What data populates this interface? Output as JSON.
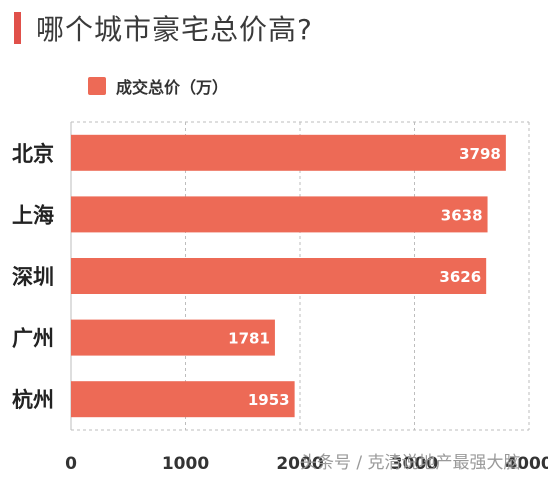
{
  "title": "哪个城市豪宅总价高?",
  "watermark": "头条号 / 克清说地产最强大脑",
  "chart_data": {
    "type": "bar",
    "orientation": "horizontal",
    "title": "哪个城市豪宅总价高?",
    "categories": [
      "北京",
      "上海",
      "深圳",
      "广州",
      "杭州"
    ],
    "series": [
      {
        "name": "成交总价（万）",
        "values": [
          3798,
          3638,
          3626,
          1781,
          1953
        ]
      }
    ],
    "xlim": [
      0,
      4000
    ],
    "xticks": [
      0,
      1000,
      2000,
      3000,
      4000
    ],
    "xtick_labels": [
      "0",
      "1000",
      "2000",
      "3000",
      "4000"
    ],
    "grid": true,
    "legend": "top-left",
    "bar_color": "#ed6a56",
    "accent_color": "#e0504a"
  }
}
